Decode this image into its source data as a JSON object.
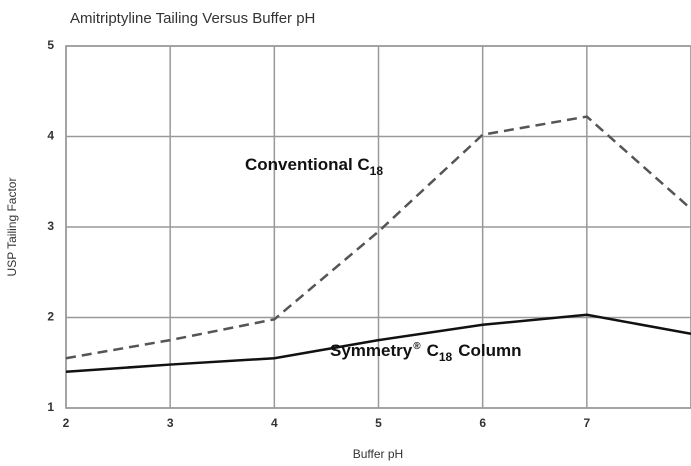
{
  "chart_data": {
    "type": "line",
    "title": "Amitriptyline Tailing Versus Buffer pH",
    "x_label": "Buffer pH",
    "y_label": "USP Tailing Factor",
    "x": [
      2,
      3,
      4,
      5,
      6,
      7,
      8
    ],
    "series": [
      {
        "color": "#555555",
        "dashed": true,
        "values": [
          1.55,
          1.75,
          1.98,
          2.95,
          4.02,
          4.22,
          3.2
        ]
      },
      {
        "color": "#111111",
        "dashed": false,
        "values": [
          1.4,
          1.48,
          1.55,
          1.75,
          1.92,
          2.03,
          1.82
        ]
      }
    ],
    "annotations": [
      [
        {
          "text": "Conventional C"
        },
        {
          "text": "18",
          "style": "sub"
        }
      ],
      [
        {
          "text": "Symmetry"
        },
        {
          "text": "®",
          "style": "sup"
        },
        {
          "text": "C"
        },
        {
          "text": "18",
          "style": "sub"
        },
        {
          "text": "Column"
        }
      ]
    ],
    "xlim": [
      2,
      8
    ],
    "ylim": [
      1,
      5
    ],
    "xticks": [
      2,
      3,
      4,
      5,
      6,
      7
    ],
    "yticks": [
      1,
      2,
      3,
      4,
      5
    ],
    "grid": true
  }
}
